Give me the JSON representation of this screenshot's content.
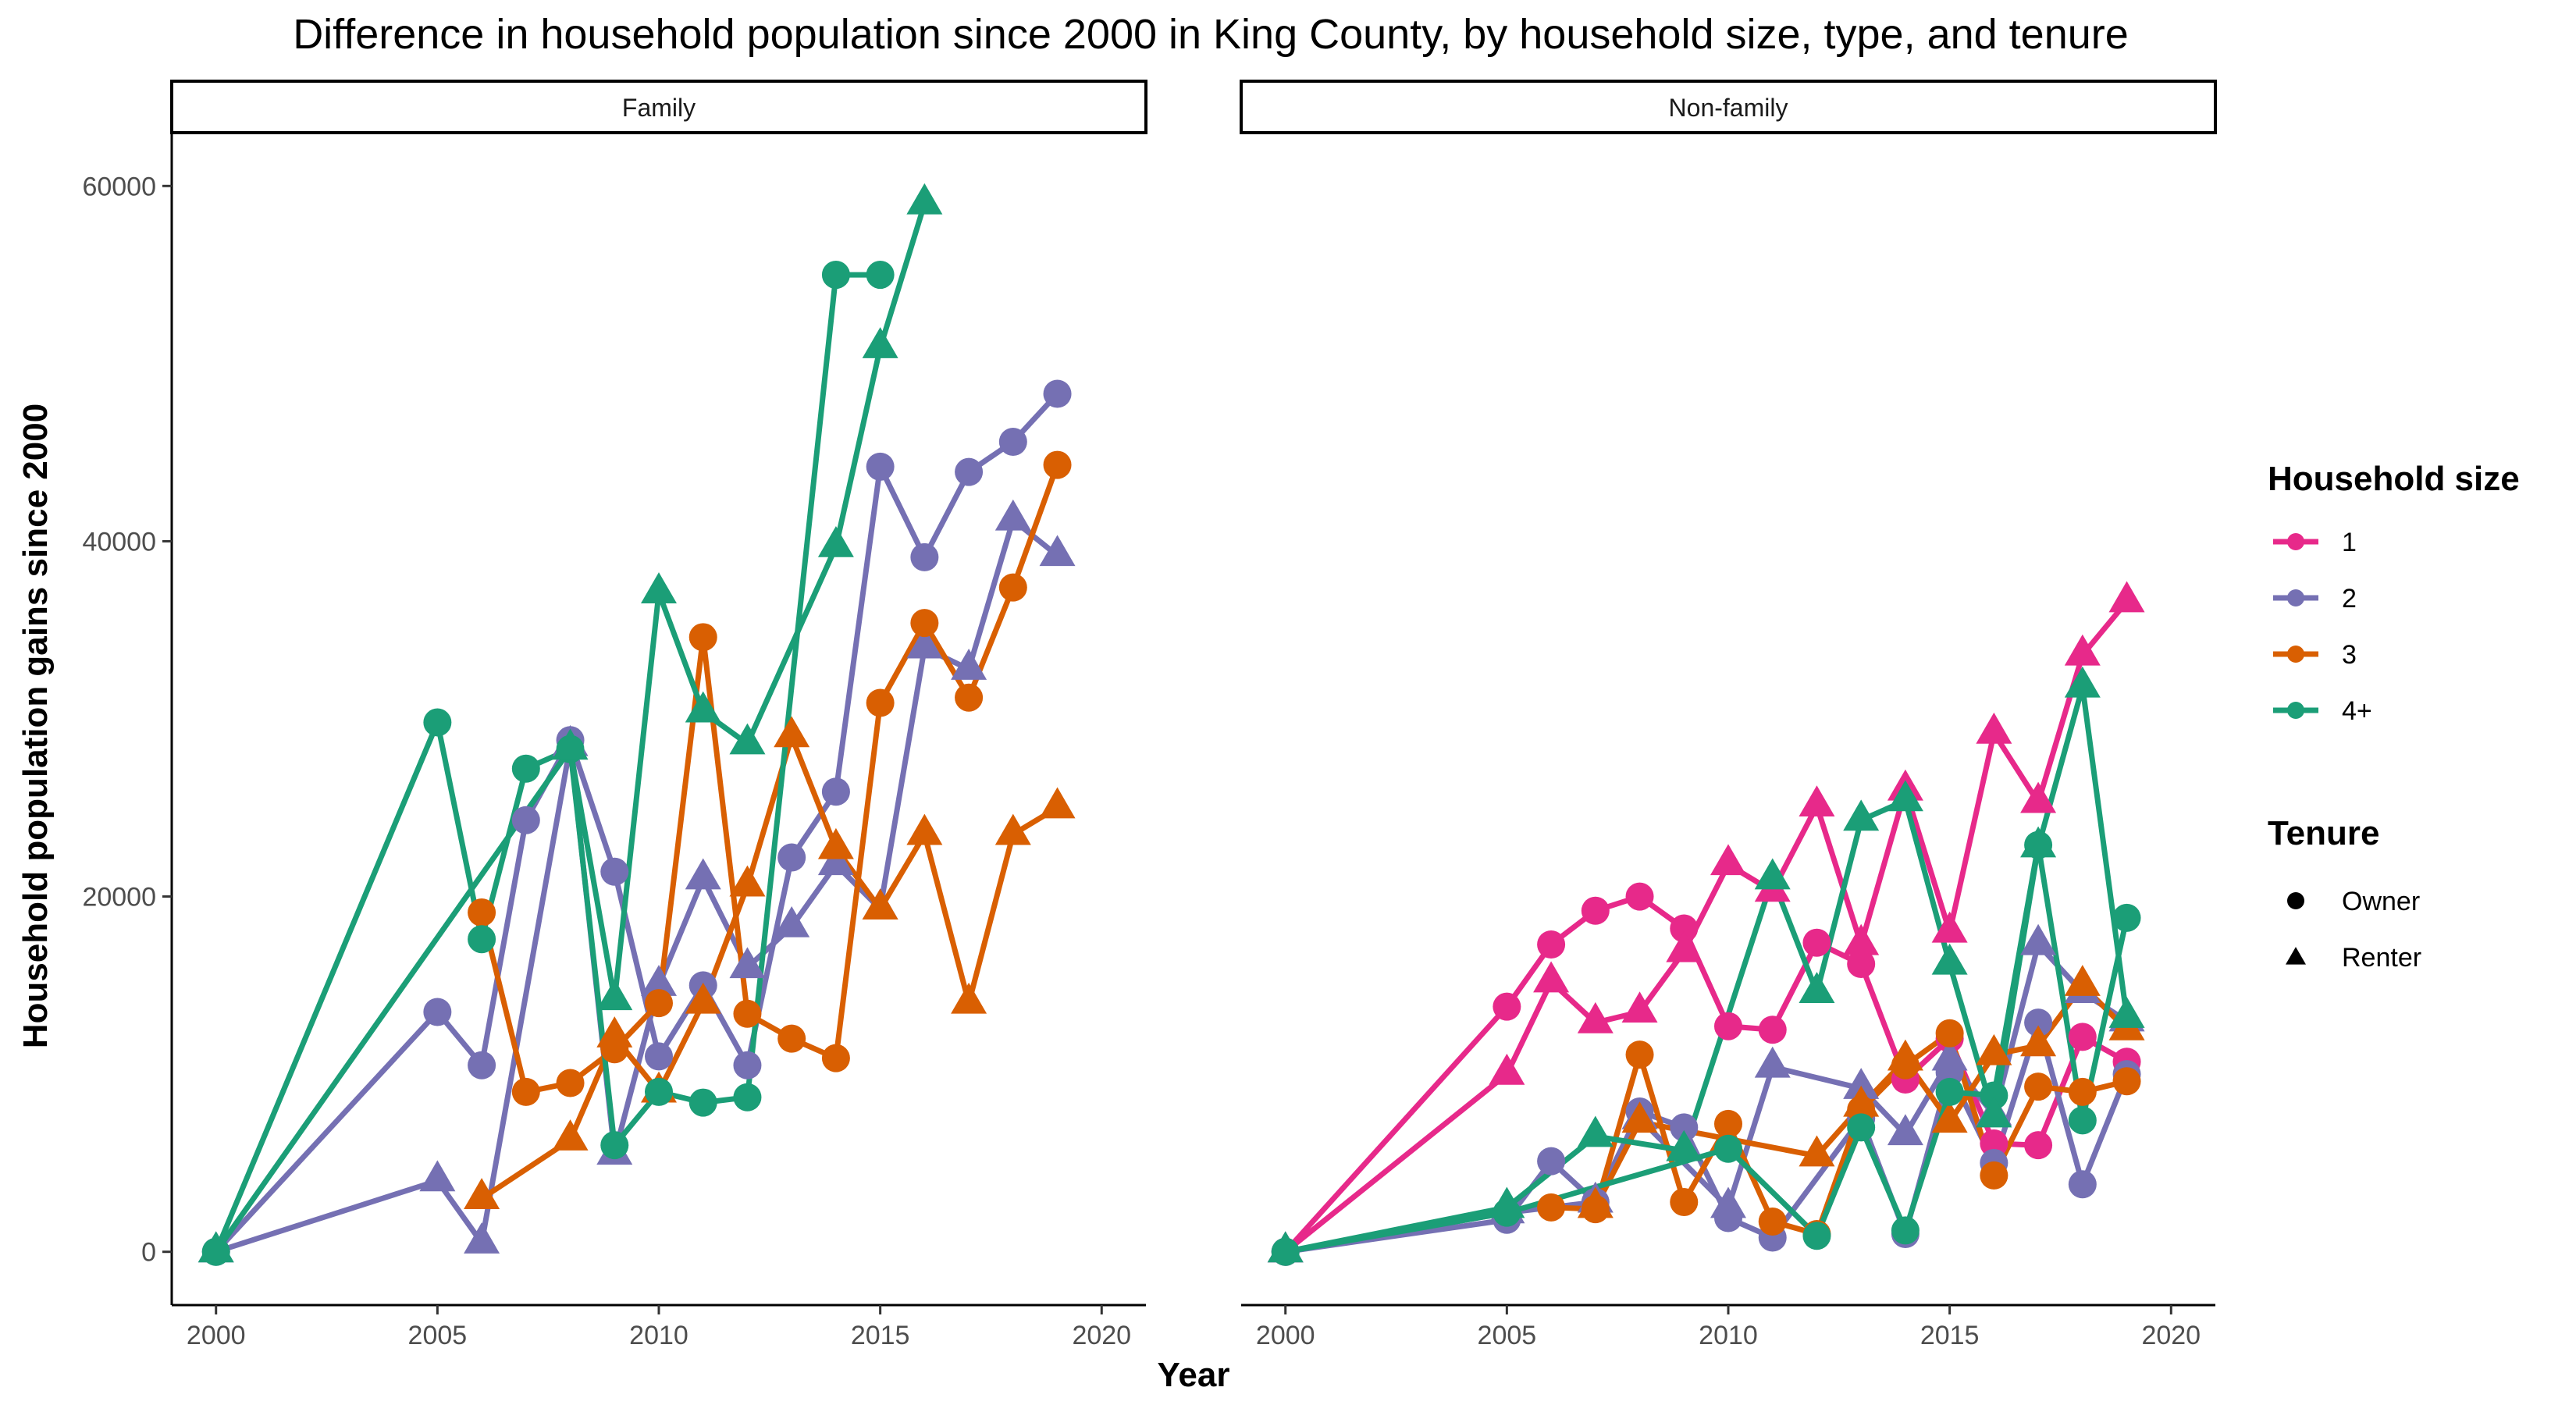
{
  "chart_data": {
    "type": "line",
    "title": "Difference in household population since 2000 in King County, by household size, type, and tenure",
    "xlabel": "Year",
    "ylabel": "Household population gains since 2000",
    "xlim": [
      1999,
      2021
    ],
    "ylim": [
      -3000,
      63000
    ],
    "x_ticks": [
      2000,
      2005,
      2010,
      2015,
      2020
    ],
    "y_ticks": [
      0,
      20000,
      40000,
      60000
    ],
    "grid": false,
    "legend_position": "right",
    "legends": {
      "size": {
        "title": "Household size",
        "items": [
          "1",
          "2",
          "3",
          "4+"
        ]
      },
      "tenure": {
        "title": "Tenure",
        "items": [
          "Owner",
          "Renter"
        ]
      }
    },
    "colors": {
      "1": "#E7298A",
      "2": "#7570B3",
      "3": "#D95F02",
      "4+": "#1B9E77"
    },
    "panels": [
      {
        "label": "Family",
        "series": [
          {
            "size": "2",
            "tenure": "Owner",
            "points": [
              [
                2000,
                0
              ],
              [
                2005,
                13500
              ],
              [
                2006,
                10500
              ],
              [
                2007,
                24300
              ],
              [
                2008,
                28800
              ],
              [
                2009,
                21400
              ],
              [
                2010,
                11000
              ],
              [
                2011,
                15000
              ],
              [
                2012,
                10500
              ],
              [
                2013,
                22200
              ],
              [
                2014,
                25900
              ],
              [
                2015,
                44200
              ],
              [
                2016,
                39100
              ],
              [
                2017,
                43900
              ],
              [
                2018,
                45600
              ],
              [
                2019,
                48300
              ]
            ]
          },
          {
            "size": "2",
            "tenure": "Renter",
            "points": [
              [
                2000,
                0
              ],
              [
                2005,
                4000
              ],
              [
                2006,
                500
              ],
              [
                2008,
                28500
              ],
              [
                2009,
                5500
              ],
              [
                2010,
                15000
              ],
              [
                2011,
                21000
              ],
              [
                2012,
                16000
              ],
              [
                2013,
                18300
              ],
              [
                2014,
                21800
              ],
              [
                2015,
                19300
              ],
              [
                2016,
                34000
              ],
              [
                2017,
                32800
              ],
              [
                2018,
                41200
              ],
              [
                2019,
                39200
              ]
            ]
          },
          {
            "size": "3",
            "tenure": "Owner",
            "points": [
              [
                2006,
                19100
              ],
              [
                2007,
                9000
              ],
              [
                2008,
                9500
              ],
              [
                2009,
                11400
              ],
              [
                2010,
                14000
              ],
              [
                2011,
                34600
              ],
              [
                2012,
                13400
              ],
              [
                2013,
                12000
              ],
              [
                2014,
                10900
              ],
              [
                2015,
                30900
              ],
              [
                2016,
                35400
              ],
              [
                2017,
                31200
              ],
              [
                2018,
                37400
              ],
              [
                2019,
                44300
              ]
            ]
          },
          {
            "size": "3",
            "tenure": "Renter",
            "points": [
              [
                2006,
                3000
              ],
              [
                2008,
                6300
              ],
              [
                2009,
                12100
              ],
              [
                2010,
                9000
              ],
              [
                2011,
                14000
              ],
              [
                2012,
                20600
              ],
              [
                2013,
                29000
              ],
              [
                2014,
                22700
              ],
              [
                2015,
                19300
              ],
              [
                2016,
                23500
              ],
              [
                2017,
                14000
              ],
              [
                2018,
                23500
              ],
              [
                2019,
                25000
              ]
            ]
          },
          {
            "size": "4+",
            "tenure": "Owner",
            "points": [
              [
                2000,
                0
              ],
              [
                2005,
                29800
              ],
              [
                2006,
                17600
              ],
              [
                2007,
                27200
              ],
              [
                2008,
                28300
              ],
              [
                2009,
                6000
              ],
              [
                2010,
                9000
              ],
              [
                2011,
                8400
              ],
              [
                2012,
                8700
              ],
              [
                2014,
                55000
              ],
              [
                2015,
                55000
              ]
            ]
          },
          {
            "size": "4+",
            "tenure": "Renter",
            "points": [
              [
                2000,
                0
              ],
              [
                2008,
                28300
              ],
              [
                2009,
                14200
              ],
              [
                2010,
                37100
              ],
              [
                2011,
                30400
              ],
              [
                2012,
                28600
              ],
              [
                2014,
                39700
              ],
              [
                2015,
                50900
              ],
              [
                2016,
                59000
              ]
            ]
          }
        ]
      },
      {
        "label": "Non-family",
        "series": [
          {
            "size": "1",
            "tenure": "Owner",
            "points": [
              [
                2000,
                0
              ],
              [
                2005,
                13800
              ],
              [
                2006,
                17300
              ],
              [
                2007,
                19200
              ],
              [
                2008,
                20000
              ],
              [
                2009,
                18200
              ],
              [
                2010,
                12700
              ],
              [
                2011,
                12500
              ],
              [
                2012,
                17400
              ],
              [
                2013,
                16200
              ],
              [
                2014,
                9700
              ],
              [
                2015,
                12000
              ],
              [
                2016,
                6100
              ],
              [
                2017,
                6000
              ],
              [
                2018,
                12100
              ],
              [
                2019,
                10700
              ]
            ]
          },
          {
            "size": "1",
            "tenure": "Renter",
            "points": [
              [
                2000,
                0
              ],
              [
                2005,
                10000
              ],
              [
                2006,
                15200
              ],
              [
                2007,
                12900
              ],
              [
                2008,
                13500
              ],
              [
                2009,
                16900
              ],
              [
                2010,
                21800
              ],
              [
                2011,
                20300
              ],
              [
                2012,
                25100
              ],
              [
                2013,
                17300
              ],
              [
                2014,
                26000
              ],
              [
                2015,
                18000
              ],
              [
                2016,
                29200
              ],
              [
                2017,
                25300
              ],
              [
                2018,
                33600
              ],
              [
                2019,
                36600
              ]
            ]
          },
          {
            "size": "2",
            "tenure": "Owner",
            "points": [
              [
                2000,
                0
              ],
              [
                2005,
                1800
              ],
              [
                2006,
                5100
              ],
              [
                2007,
                2800
              ],
              [
                2008,
                7900
              ],
              [
                2009,
                7000
              ],
              [
                2010,
                1900
              ],
              [
                2011,
                800
              ],
              [
                2013,
                7500
              ],
              [
                2014,
                1000
              ],
              [
                2015,
                10100
              ],
              [
                2016,
                5000
              ],
              [
                2017,
                12900
              ],
              [
                2018,
                3800
              ],
              [
                2019,
                10000
              ]
            ]
          },
          {
            "size": "2",
            "tenure": "Renter",
            "points": [
              [
                2000,
                0
              ],
              [
                2005,
                2200
              ],
              [
                2007,
                2800
              ],
              [
                2008,
                7500
              ],
              [
                2010,
                2500
              ],
              [
                2011,
                10400
              ],
              [
                2013,
                9200
              ],
              [
                2014,
                6600
              ],
              [
                2015,
                10800
              ],
              [
                2016,
                7700
              ],
              [
                2017,
                17300
              ],
              [
                2018,
                14600
              ],
              [
                2019,
                13000
              ]
            ]
          },
          {
            "size": "3",
            "tenure": "Owner",
            "points": [
              [
                2006,
                2500
              ],
              [
                2007,
                2400
              ],
              [
                2008,
                11100
              ],
              [
                2009,
                2800
              ],
              [
                2010,
                7200
              ],
              [
                2011,
                1700
              ],
              [
                2012,
                1000
              ],
              [
                2013,
                8000
              ],
              [
                2014,
                10500
              ],
              [
                2015,
                12300
              ],
              [
                2016,
                4300
              ],
              [
                2017,
                9300
              ],
              [
                2018,
                9000
              ],
              [
                2019,
                9600
              ]
            ]
          },
          {
            "size": "3",
            "tenure": "Renter",
            "points": [
              [
                2007,
                2500
              ],
              [
                2008,
                7300
              ],
              [
                2012,
                5400
              ],
              [
                2013,
                8200
              ],
              [
                2014,
                10800
              ],
              [
                2015,
                7300
              ],
              [
                2016,
                11100
              ],
              [
                2017,
                11600
              ],
              [
                2018,
                15000
              ],
              [
                2019,
                12500
              ]
            ]
          },
          {
            "size": "4+",
            "tenure": "Owner",
            "points": [
              [
                2000,
                0
              ],
              [
                2005,
                2200
              ],
              [
                2010,
                5800
              ],
              [
                2012,
                900
              ],
              [
                2013,
                7000
              ],
              [
                2014,
                1200
              ],
              [
                2015,
                9000
              ],
              [
                2016,
                8800
              ],
              [
                2017,
                22900
              ],
              [
                2018,
                7400
              ],
              [
                2019,
                18800
              ]
            ]
          },
          {
            "size": "4+",
            "tenure": "Renter",
            "points": [
              [
                2000,
                0
              ],
              [
                2005,
                2500
              ],
              [
                2007,
                6500
              ],
              [
                2009,
                5700
              ],
              [
                2011,
                21000
              ],
              [
                2012,
                14600
              ],
              [
                2013,
                24300
              ],
              [
                2014,
                25400
              ],
              [
                2015,
                16200
              ],
              [
                2016,
                7600
              ],
              [
                2017,
                22800
              ],
              [
                2018,
                31800
              ],
              [
                2019,
                13200
              ]
            ]
          }
        ]
      }
    ]
  }
}
